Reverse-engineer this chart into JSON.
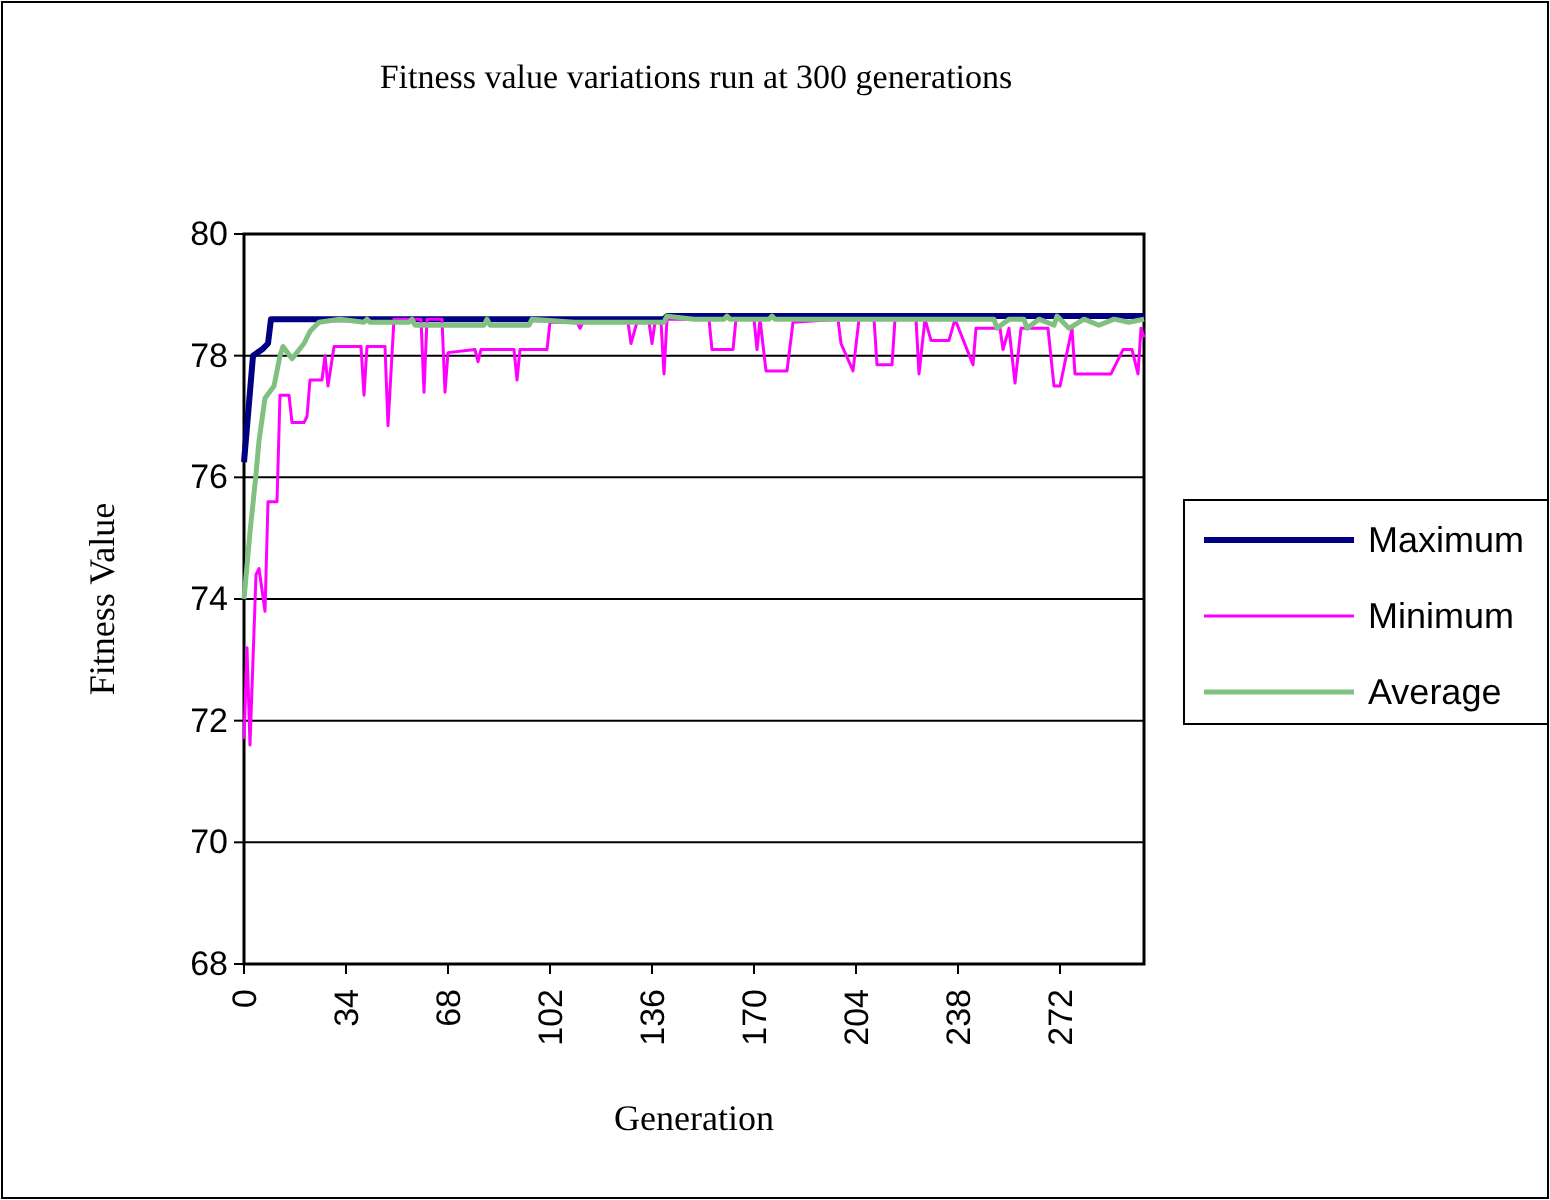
{
  "chart_data": {
    "type": "line",
    "title": "Fitness value variations run at 300 generations",
    "xlabel": "Generation",
    "ylabel": "Fitness Value",
    "xlim": [
      0,
      300
    ],
    "xticks": [
      0,
      34,
      68,
      102,
      136,
      170,
      204,
      238,
      272
    ],
    "ylim": [
      68,
      80
    ],
    "yticks": [
      68,
      70,
      72,
      74,
      76,
      78,
      80
    ],
    "grid": "y",
    "legend": "right",
    "line_style": "solid",
    "marker": "none",
    "series": [
      {
        "name": "Maximum",
        "color": "#000080",
        "x": [
          0,
          3,
          6,
          8,
          9,
          140,
          141,
          300
        ],
        "values": [
          76.25,
          78.0,
          78.1,
          78.2,
          78.6,
          78.6,
          78.65,
          78.65
        ]
      },
      {
        "name": "Minimum",
        "color": "#ff00ff",
        "x": [
          0,
          1,
          2,
          4,
          5,
          7,
          8,
          11,
          12,
          15,
          16,
          20,
          21,
          22,
          26,
          27,
          28,
          30,
          39,
          40,
          41,
          47,
          48,
          50,
          59,
          60,
          61,
          66,
          67,
          68,
          77,
          78,
          79,
          90,
          91,
          92,
          101,
          102,
          111,
          112,
          113,
          128,
          129,
          131,
          135,
          136,
          137,
          139,
          140,
          141,
          155,
          156,
          163,
          164,
          170,
          171,
          172,
          174,
          181,
          183,
          198,
          199,
          203,
          205,
          210,
          211,
          216,
          217,
          224,
          225,
          227,
          229,
          235,
          237,
          243,
          244,
          252,
          253,
          255,
          257,
          259,
          268,
          270,
          272,
          276,
          277,
          289,
          293,
          296,
          298,
          299,
          300
        ],
        "values": [
          71.7,
          73.2,
          71.6,
          74.4,
          74.5,
          73.8,
          75.6,
          75.6,
          77.35,
          77.35,
          76.9,
          76.9,
          77.0,
          77.6,
          77.6,
          78.0,
          77.5,
          78.15,
          78.15,
          77.35,
          78.15,
          78.15,
          76.85,
          78.6,
          78.6,
          77.4,
          78.6,
          78.6,
          77.4,
          78.05,
          78.1,
          77.9,
          78.1,
          78.1,
          77.6,
          78.1,
          78.1,
          78.55,
          78.55,
          78.45,
          78.55,
          78.55,
          78.2,
          78.55,
          78.55,
          78.2,
          78.55,
          78.55,
          77.7,
          78.6,
          78.6,
          78.1,
          78.1,
          78.6,
          78.6,
          78.1,
          78.6,
          77.75,
          77.75,
          78.55,
          78.6,
          78.2,
          77.75,
          78.6,
          78.6,
          77.85,
          77.85,
          78.6,
          78.6,
          77.7,
          78.6,
          78.25,
          78.25,
          78.6,
          77.85,
          78.45,
          78.45,
          78.1,
          78.45,
          77.55,
          78.45,
          78.45,
          77.5,
          77.5,
          78.45,
          77.7,
          77.7,
          78.1,
          78.1,
          77.7,
          78.45,
          78.3
        ]
      },
      {
        "name": "Average",
        "color": "#80c080",
        "x": [
          0,
          2,
          4,
          5,
          7,
          10,
          12,
          13,
          16,
          20,
          22,
          25,
          32,
          40,
          41,
          42,
          55,
          56,
          57,
          70,
          80,
          81,
          82,
          95,
          96,
          110,
          140,
          141,
          150,
          160,
          161,
          162,
          175,
          176,
          177,
          200,
          230,
          245,
          250,
          251,
          255,
          260,
          261,
          265,
          270,
          271,
          275,
          280,
          285,
          290,
          295,
          300
        ],
        "values": [
          74.0,
          75.1,
          76.05,
          76.6,
          77.3,
          77.5,
          78.0,
          78.15,
          77.95,
          78.2,
          78.4,
          78.55,
          78.6,
          78.55,
          78.6,
          78.55,
          78.55,
          78.6,
          78.5,
          78.5,
          78.5,
          78.6,
          78.5,
          78.5,
          78.6,
          78.55,
          78.55,
          78.65,
          78.6,
          78.6,
          78.65,
          78.6,
          78.6,
          78.65,
          78.6,
          78.6,
          78.6,
          78.6,
          78.6,
          78.45,
          78.6,
          78.6,
          78.45,
          78.6,
          78.5,
          78.65,
          78.45,
          78.6,
          78.5,
          78.6,
          78.55,
          78.6
        ]
      }
    ]
  }
}
